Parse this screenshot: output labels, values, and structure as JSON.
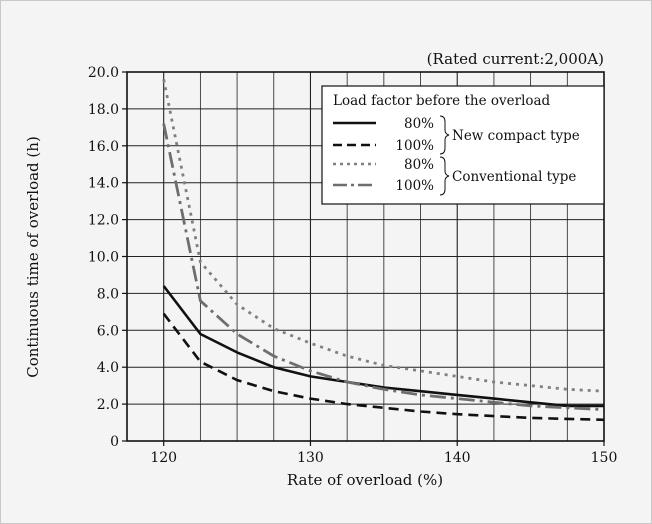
{
  "chart_data": {
    "type": "line",
    "title": "",
    "annotation": "(Rated current:2,000A)",
    "xlabel": "Rate of overload (%)",
    "ylabel": "Continuous time of overload (h)",
    "xlim": [
      117.5,
      150
    ],
    "ylim": [
      0,
      20
    ],
    "x_ticks": [
      120,
      130,
      140,
      150
    ],
    "y_ticks": [
      0,
      2.0,
      4.0,
      6.0,
      8.0,
      10.0,
      12.0,
      14.0,
      16.0,
      18.0,
      20.0
    ],
    "y_tick_labels": [
      "0",
      "2.0",
      "4.0",
      "6.0",
      "8.0",
      "10.0",
      "12.0",
      "14.0",
      "16.0",
      "18.0",
      "20.0"
    ],
    "grid": true,
    "legend": {
      "title": "Load factor before the overload",
      "placement": "top-right",
      "groups": [
        "New compact type",
        "Conventional type"
      ]
    },
    "series": [
      {
        "name": "80%",
        "group": "New compact type",
        "style": "solid",
        "color": "#111111",
        "x": [
          120,
          122.5,
          125,
          127.5,
          130,
          132.5,
          135,
          137.5,
          140,
          142.5,
          145,
          147.5,
          150
        ],
        "y": [
          8.4,
          5.8,
          4.8,
          4.0,
          3.5,
          3.2,
          2.9,
          2.7,
          2.5,
          2.3,
          2.1,
          1.9,
          1.9
        ]
      },
      {
        "name": "100%",
        "group": "New compact type",
        "style": "dashed",
        "color": "#111111",
        "x": [
          120,
          122.5,
          125,
          127.5,
          130,
          132.5,
          135,
          137.5,
          140,
          142.5,
          145,
          147.5,
          150
        ],
        "y": [
          6.9,
          4.3,
          3.3,
          2.7,
          2.3,
          2.0,
          1.8,
          1.6,
          1.45,
          1.35,
          1.25,
          1.2,
          1.15
        ]
      },
      {
        "name": "80%",
        "group": "Conventional type",
        "style": "dotted",
        "color": "#808080",
        "x": [
          120,
          122.5,
          125,
          127.5,
          130,
          132.5,
          135,
          137.5,
          140,
          142.5,
          145,
          147.5,
          150
        ],
        "y": [
          19.6,
          9.7,
          7.4,
          6.1,
          5.3,
          4.6,
          4.1,
          3.8,
          3.5,
          3.2,
          3.0,
          2.8,
          2.7
        ]
      },
      {
        "name": "100%",
        "group": "Conventional type",
        "style": "dashdot",
        "color": "#6e6e6e",
        "x": [
          120,
          122.5,
          125,
          127.5,
          130,
          132.5,
          135,
          137.5,
          140,
          142.5,
          145,
          147.5,
          150
        ],
        "y": [
          17.2,
          7.6,
          5.8,
          4.6,
          3.8,
          3.2,
          2.8,
          2.5,
          2.3,
          2.1,
          1.9,
          1.8,
          1.7
        ]
      }
    ]
  }
}
